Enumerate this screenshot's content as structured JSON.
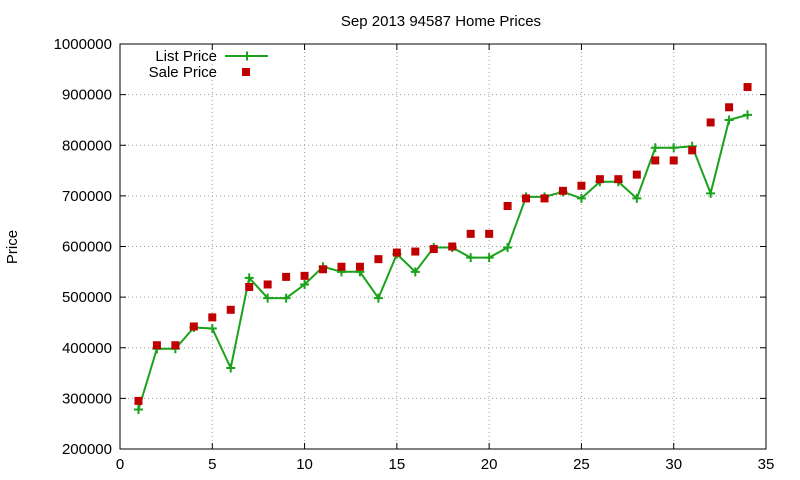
{
  "chart_data": {
    "type": "line",
    "title": "Sep 2013 94587 Home Prices",
    "xlabel": "",
    "ylabel": "Price",
    "xlim": [
      0,
      35
    ],
    "ylim": [
      200000,
      1000000
    ],
    "xticks": [
      0,
      5,
      10,
      15,
      20,
      25,
      30,
      35
    ],
    "yticks": [
      200000,
      300000,
      400000,
      500000,
      600000,
      700000,
      800000,
      900000,
      1000000
    ],
    "grid": true,
    "legend_position": "top-left",
    "series": [
      {
        "name": "List Price",
        "style": "line-plus",
        "color": "#1aa31a",
        "x": [
          1,
          2,
          3,
          4,
          5,
          6,
          7,
          8,
          9,
          10,
          11,
          12,
          13,
          14,
          15,
          16,
          17,
          18,
          19,
          20,
          21,
          22,
          23,
          24,
          25,
          26,
          27,
          28,
          29,
          30,
          31,
          32,
          33,
          34
        ],
        "y": [
          278000,
          398000,
          398000,
          440000,
          438000,
          360000,
          538000,
          498000,
          498000,
          525000,
          560000,
          550000,
          550000,
          498000,
          585000,
          550000,
          598000,
          598000,
          578000,
          578000,
          598000,
          698000,
          698000,
          708000,
          695000,
          728000,
          728000,
          695000,
          795000,
          795000,
          798000,
          705000,
          850000,
          860000
        ]
      },
      {
        "name": "Sale Price",
        "style": "square",
        "color": "#c00000",
        "x": [
          1,
          2,
          3,
          4,
          5,
          6,
          7,
          8,
          9,
          10,
          11,
          12,
          13,
          14,
          15,
          16,
          17,
          18,
          19,
          20,
          21,
          22,
          23,
          24,
          25,
          26,
          27,
          28,
          29,
          30,
          31,
          32,
          33,
          34
        ],
        "y": [
          295000,
          405000,
          405000,
          442000,
          460000,
          475000,
          520000,
          525000,
          540000,
          542000,
          555000,
          560000,
          560000,
          575000,
          588000,
          590000,
          595000,
          600000,
          625000,
          625000,
          680000,
          695000,
          695000,
          710000,
          720000,
          733000,
          733000,
          742000,
          770000,
          770000,
          790000,
          845000,
          875000,
          915000
        ]
      }
    ]
  }
}
